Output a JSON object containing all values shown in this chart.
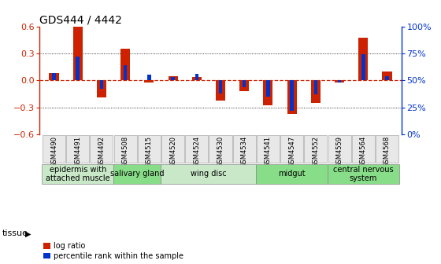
{
  "title": "GDS444 / 4442",
  "samples": [
    "GSM4490",
    "GSM4491",
    "GSM4492",
    "GSM4508",
    "GSM4515",
    "GSM4520",
    "GSM4524",
    "GSM4530",
    "GSM4534",
    "GSM4541",
    "GSM4547",
    "GSM4552",
    "GSM4559",
    "GSM4564",
    "GSM4568"
  ],
  "log_ratio": [
    0.08,
    0.6,
    -0.19,
    0.35,
    -0.02,
    0.05,
    0.04,
    -0.22,
    -0.12,
    -0.28,
    -0.37,
    -0.25,
    -0.02,
    0.47,
    0.1
  ],
  "percentile": [
    57,
    72,
    42,
    64,
    55,
    53,
    56,
    38,
    44,
    35,
    22,
    37,
    48,
    74,
    54
  ],
  "tissue_groups": [
    {
      "label": "epidermis with\nattached muscle",
      "start": 0,
      "end": 3,
      "color": "#c8e8c8"
    },
    {
      "label": "salivary gland",
      "start": 3,
      "end": 5,
      "color": "#88dd88"
    },
    {
      "label": "wing disc",
      "start": 5,
      "end": 9,
      "color": "#c8e8c8"
    },
    {
      "label": "midgut",
      "start": 9,
      "end": 12,
      "color": "#88dd88"
    },
    {
      "label": "central nervous\nsystem",
      "start": 12,
      "end": 15,
      "color": "#88dd88"
    }
  ],
  "ylim_left": [
    -0.6,
    0.6
  ],
  "ylim_right": [
    0,
    100
  ],
  "yticks_left": [
    -0.6,
    -0.3,
    0.0,
    0.3,
    0.6
  ],
  "yticks_right": [
    0,
    25,
    50,
    75,
    100
  ],
  "bar_color_red": "#cc2200",
  "bar_color_blue": "#0033cc",
  "zero_line_color": "#cc2200",
  "bg_color": "#ffffff",
  "left_axis_color": "#cc2200",
  "right_axis_color": "#0033cc",
  "red_bar_width": 0.4,
  "blue_bar_width": 0.15,
  "tissue_label_fontsize": 7,
  "sample_label_fontsize": 6,
  "axis_fontsize": 8
}
